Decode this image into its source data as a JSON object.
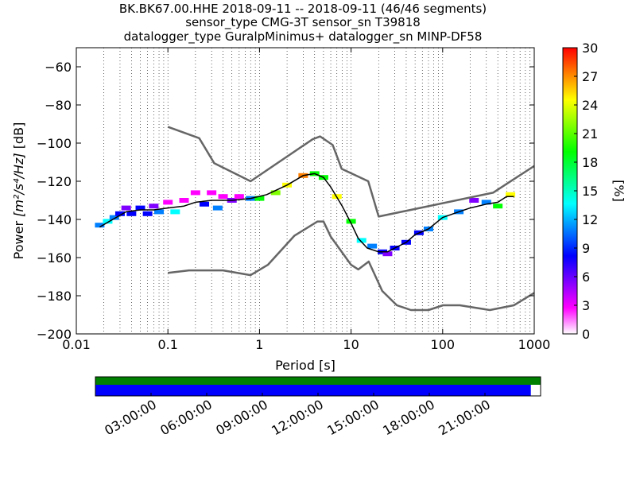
{
  "chart_data": {
    "type": "heatmap",
    "title_lines": [
      "BK.BK67.00.HHE   2018-09-11 -- 2018-09-11  (46/46 segments)",
      "sensor_type CMG-3T sensor_sn T39818",
      "datalogger_type GuralpMinimus+ datalogger_sn MINP-DF58"
    ],
    "xlabel": "Period [s]",
    "ylabel_prefix": "Power ",
    "ylabel_math": "[m²/s⁴/Hz]",
    "ylabel_suffix": " [dB]",
    "xscale": "log",
    "xlim": [
      0.01,
      1000
    ],
    "ylim": [
      -200,
      -50
    ],
    "xticks": [
      {
        "value": 0.01,
        "label": "0.01"
      },
      {
        "value": 0.1,
        "label": "0.1"
      },
      {
        "value": 1,
        "label": "1"
      },
      {
        "value": 10,
        "label": "10"
      },
      {
        "value": 100,
        "label": "100"
      },
      {
        "value": 1000,
        "label": "1000"
      }
    ],
    "yticks": [
      {
        "value": -60,
        "label": "−60"
      },
      {
        "value": -80,
        "label": "−80"
      },
      {
        "value": -100,
        "label": "−100"
      },
      {
        "value": -120,
        "label": "−120"
      },
      {
        "value": -140,
        "label": "−140"
      },
      {
        "value": -160,
        "label": "−160"
      },
      {
        "value": -180,
        "label": "−180"
      },
      {
        "value": -200,
        "label": "−200"
      }
    ],
    "grid": "vertical dotted",
    "colorbar": {
      "label": "[%]",
      "range": [
        0,
        30
      ],
      "ticks": [
        {
          "value": 0,
          "label": "0"
        },
        {
          "value": 3,
          "label": "3"
        },
        {
          "value": 6,
          "label": "6"
        },
        {
          "value": 9,
          "label": "9"
        },
        {
          "value": 12,
          "label": "12"
        },
        {
          "value": 15,
          "label": "15"
        },
        {
          "value": 18,
          "label": "18"
        },
        {
          "value": 21,
          "label": "21"
        },
        {
          "value": 24,
          "label": "24"
        },
        {
          "value": 27,
          "label": "27"
        },
        {
          "value": 30,
          "label": "30"
        }
      ],
      "colors": [
        "#ffffff",
        "#ff00ff",
        "#8000ff",
        "#0000ff",
        "#0080ff",
        "#00ffff",
        "#00ff80",
        "#00ff00",
        "#80ff00",
        "#ffff00",
        "#ff8000",
        "#ff0000"
      ]
    },
    "series": [
      {
        "role": "high noise model",
        "color": "#666666",
        "x": [
          0.1,
          0.22,
          0.32,
          0.8,
          3.8,
          4.6,
          6.3,
          7.9,
          15.4,
          20,
          354.8,
          1000
        ],
        "y": [
          -91.5,
          -97.4,
          -110.5,
          -120,
          -98,
          -96.5,
          -101,
          -113.5,
          -120,
          -138.5,
          -126,
          -112
        ]
      },
      {
        "role": "low noise model",
        "color": "#666666",
        "x": [
          0.1,
          0.17,
          0.4,
          0.8,
          1.24,
          2.4,
          4.3,
          5,
          6,
          10,
          12,
          15.6,
          21.9,
          31.6,
          45,
          70,
          101,
          154,
          328,
          600,
          1000
        ],
        "y": [
          -168,
          -166.7,
          -166.7,
          -169.2,
          -163.7,
          -148.6,
          -141.1,
          -141.1,
          -149,
          -163.8,
          -166.2,
          -162.1,
          -177.5,
          -185,
          -187.5,
          -187.5,
          -185,
          -185,
          -187.5,
          -185,
          -178.5
        ]
      },
      {
        "role": "mode of PSD",
        "color": "#000000",
        "x": [
          0.018,
          0.025,
          0.035,
          0.05,
          0.07,
          0.1,
          0.15,
          0.2,
          0.3,
          0.5,
          0.8,
          1.2,
          2,
          3,
          4,
          5,
          6,
          8,
          10,
          12,
          15,
          20,
          25,
          30,
          40,
          50,
          70,
          100,
          150,
          200,
          300,
          400,
          500,
          600
        ],
        "y": [
          -144,
          -140,
          -136,
          -135,
          -135,
          -134,
          -133,
          -131,
          -130,
          -130,
          -129,
          -127,
          -122,
          -117,
          -116,
          -118,
          -123,
          -133,
          -142,
          -150,
          -155,
          -157,
          -157,
          -155,
          -152,
          -148,
          -145,
          -139,
          -136,
          -134,
          -132,
          -131,
          -128,
          -128
        ]
      }
    ],
    "density_samples": [
      {
        "x": 0.018,
        "y": -143,
        "p": 10
      },
      {
        "x": 0.022,
        "y": -141,
        "p": 14
      },
      {
        "x": 0.026,
        "y": -139,
        "p": 12
      },
      {
        "x": 0.03,
        "y": -137,
        "p": 8
      },
      {
        "x": 0.035,
        "y": -134,
        "p": 6
      },
      {
        "x": 0.04,
        "y": -137,
        "p": 8
      },
      {
        "x": 0.05,
        "y": -134,
        "p": 7
      },
      {
        "x": 0.06,
        "y": -137,
        "p": 9
      },
      {
        "x": 0.07,
        "y": -133,
        "p": 5
      },
      {
        "x": 0.08,
        "y": -136,
        "p": 10
      },
      {
        "x": 0.1,
        "y": -131,
        "p": 4
      },
      {
        "x": 0.12,
        "y": -136,
        "p": 13
      },
      {
        "x": 0.15,
        "y": -130,
        "p": 3
      },
      {
        "x": 0.2,
        "y": -126,
        "p": 2
      },
      {
        "x": 0.25,
        "y": -132,
        "p": 8
      },
      {
        "x": 0.3,
        "y": -126,
        "p": 3
      },
      {
        "x": 0.35,
        "y": -134,
        "p": 12
      },
      {
        "x": 0.4,
        "y": -128,
        "p": 4
      },
      {
        "x": 0.5,
        "y": -130,
        "p": 6
      },
      {
        "x": 0.6,
        "y": -128,
        "p": 4
      },
      {
        "x": 0.8,
        "y": -129,
        "p": 12
      },
      {
        "x": 1,
        "y": -129,
        "p": 20
      },
      {
        "x": 1.5,
        "y": -126,
        "p": 22
      },
      {
        "x": 2,
        "y": -122,
        "p": 25
      },
      {
        "x": 3,
        "y": -117,
        "p": 26
      },
      {
        "x": 4,
        "y": -116,
        "p": 18
      },
      {
        "x": 5,
        "y": -118,
        "p": 20
      },
      {
        "x": 7,
        "y": -128,
        "p": 24
      },
      {
        "x": 10,
        "y": -141,
        "p": 20
      },
      {
        "x": 13,
        "y": -151,
        "p": 14
      },
      {
        "x": 17,
        "y": -154,
        "p": 10
      },
      {
        "x": 22,
        "y": -157,
        "p": 8
      },
      {
        "x": 25,
        "y": -158,
        "p": 6
      },
      {
        "x": 30,
        "y": -155,
        "p": 8
      },
      {
        "x": 40,
        "y": -152,
        "p": 7
      },
      {
        "x": 55,
        "y": -147,
        "p": 9
      },
      {
        "x": 70,
        "y": -145,
        "p": 12
      },
      {
        "x": 100,
        "y": -139,
        "p": 14
      },
      {
        "x": 150,
        "y": -136,
        "p": 11
      },
      {
        "x": 220,
        "y": -130,
        "p": 5
      },
      {
        "x": 300,
        "y": -131,
        "p": 10
      },
      {
        "x": 400,
        "y": -133,
        "p": 18
      },
      {
        "x": 550,
        "y": -127,
        "p": 24
      }
    ],
    "coverage": {
      "data_color": "#008000",
      "gap_color": "#0000ff",
      "background_color": "#ffffff",
      "time_labels": [
        "03:00:00",
        "06:00:00",
        "09:00:00",
        "12:00:00",
        "15:00:00",
        "18:00:00",
        "21:00:00"
      ],
      "tick_fraction": [
        0,
        0.125,
        0.25,
        0.375,
        0.5,
        0.625,
        0.75,
        0.875,
        1
      ],
      "data_fraction": 1.0,
      "gap_fraction": 0.978
    }
  }
}
